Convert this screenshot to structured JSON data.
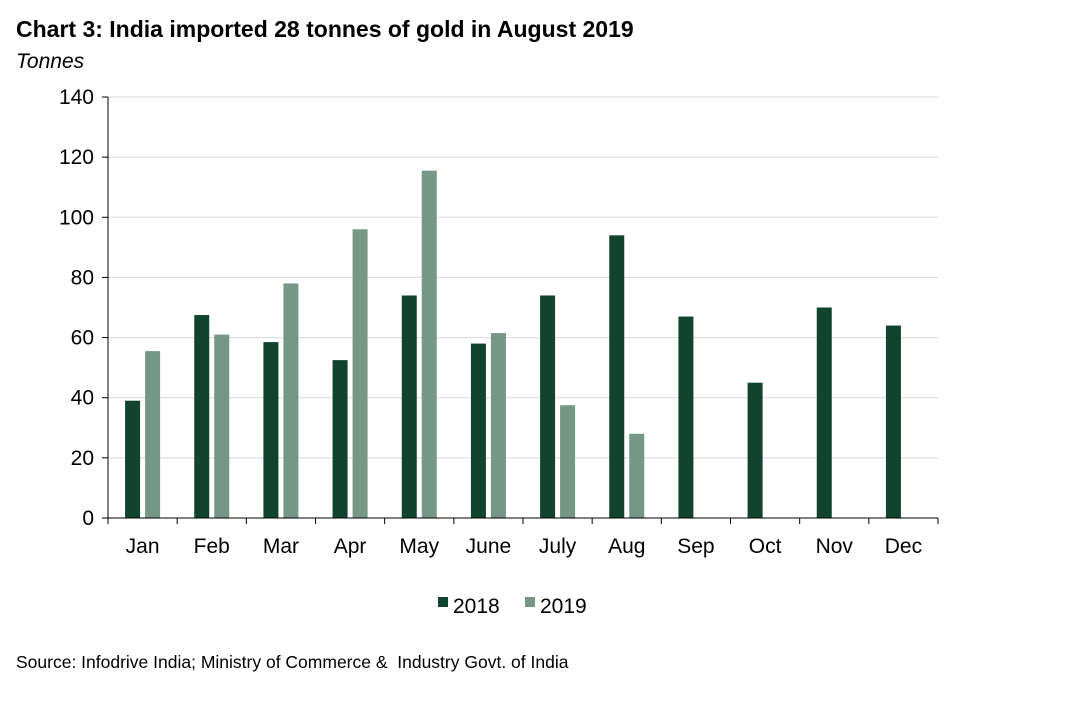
{
  "title": "Chart 3: India imported 28 tonnes of gold in August 2019",
  "unit_label": "Tonnes",
  "source": "Source: Infodrive India; Ministry of Commerce &  Industry Govt. of India",
  "chart_data": {
    "type": "bar",
    "title": "Chart 3: India imported 28 tonnes of gold in August 2019",
    "ylabel": "Tonnes",
    "categories": [
      "Jan",
      "Feb",
      "Mar",
      "Apr",
      "May",
      "June",
      "July",
      "Aug",
      "Sep",
      "Oct",
      "Nov",
      "Dec"
    ],
    "series": [
      {
        "name": "2018",
        "color": "#12432f",
        "values": [
          39,
          67.5,
          58.5,
          52.5,
          74,
          58,
          74,
          94,
          67,
          45,
          70,
          64
        ]
      },
      {
        "name": "2019",
        "color": "#769686",
        "values": [
          55.5,
          61,
          78,
          96,
          115.5,
          61.5,
          37.5,
          28,
          null,
          null,
          null,
          null
        ]
      }
    ],
    "ylim": [
      0,
      140
    ],
    "yticks": [
      0,
      20,
      40,
      60,
      80,
      100,
      120,
      140
    ],
    "grid": true,
    "legend_position": "bottom"
  }
}
